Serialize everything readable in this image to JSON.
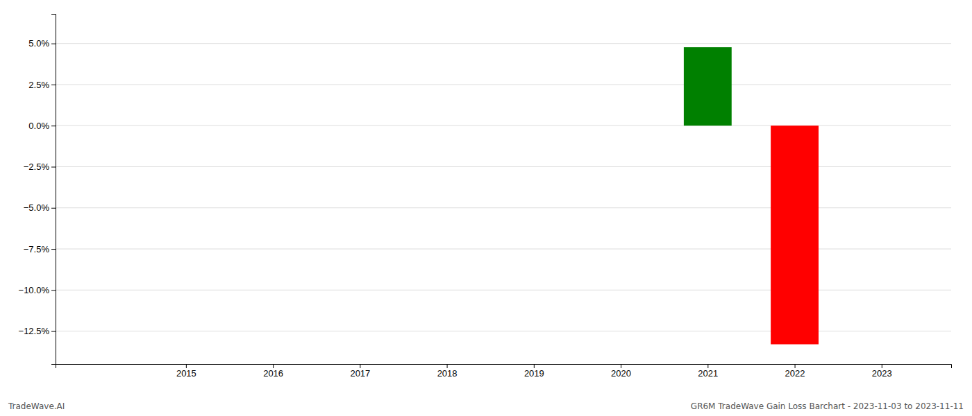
{
  "chart_data": {
    "type": "bar",
    "x": [
      2021,
      2022
    ],
    "values": [
      0.0477,
      -0.133
    ],
    "colors": [
      "#008000",
      "#ff0000"
    ],
    "xlim": [
      2013.5,
      2023.8
    ],
    "xticks": [
      2015,
      2016,
      2017,
      2018,
      2019,
      2020,
      2021,
      2022,
      2023
    ],
    "ylim": [
      -0.145,
      0.068
    ],
    "yticks": [
      {
        "value": 0.05,
        "label": "5.0%"
      },
      {
        "value": 0.025,
        "label": "2.5%"
      },
      {
        "value": 0.0,
        "label": "0.0%"
      },
      {
        "value": -0.025,
        "label": "−2.5%"
      },
      {
        "value": -0.05,
        "label": "−5.0%"
      },
      {
        "value": -0.075,
        "label": "−7.5%"
      },
      {
        "value": -0.1,
        "label": "−10.0%"
      },
      {
        "value": -0.125,
        "label": "−12.5%"
      }
    ],
    "grid": true,
    "annotations": [
      "TradeWave.AI",
      "GR6M TradeWave Gain Loss Barchart - 2023-11-03 to 2023-11-11"
    ]
  }
}
